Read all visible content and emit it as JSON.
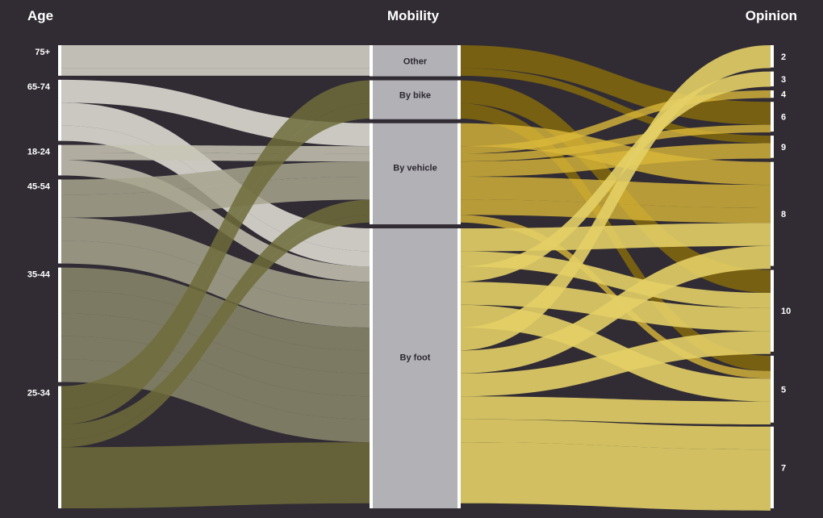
{
  "chart_data": {
    "type": "parallel-sets",
    "dimensions": [
      {
        "key": "age",
        "title": "Age",
        "categories": [
          "75+",
          "65-74",
          "18-24",
          "45-54",
          "35-44",
          "25-34"
        ]
      },
      {
        "key": "mobility",
        "title": "Mobility",
        "categories": [
          "Other",
          "By bike",
          "By vehicle",
          "By foot"
        ]
      },
      {
        "key": "opinion",
        "title": "Opinion",
        "categories": [
          "2",
          "3",
          "4",
          "6",
          "9",
          "8",
          "10",
          "5",
          "7"
        ]
      }
    ],
    "flows": [
      {
        "age": "75+",
        "mobility": "Other",
        "opinion": "6",
        "value": 3
      },
      {
        "age": "75+",
        "mobility": "Other",
        "opinion": "9",
        "value": 1
      },
      {
        "age": "65-74",
        "mobility": "By vehicle",
        "opinion": "8",
        "value": 3
      },
      {
        "age": "65-74",
        "mobility": "By foot",
        "opinion": "8",
        "value": 3
      },
      {
        "age": "65-74",
        "mobility": "By foot",
        "opinion": "10",
        "value": 2
      },
      {
        "age": "18-24",
        "mobility": "By vehicle",
        "opinion": "4",
        "value": 1
      },
      {
        "age": "18-24",
        "mobility": "By vehicle",
        "opinion": "6",
        "value": 1
      },
      {
        "age": "18-24",
        "mobility": "By foot",
        "opinion": "3",
        "value": 2
      },
      {
        "age": "45-54",
        "mobility": "By vehicle",
        "opinion": "9",
        "value": 2
      },
      {
        "age": "45-54",
        "mobility": "By vehicle",
        "opinion": "8",
        "value": 3
      },
      {
        "age": "45-54",
        "mobility": "By foot",
        "opinion": "10",
        "value": 3
      },
      {
        "age": "45-54",
        "mobility": "By foot",
        "opinion": "5",
        "value": 3
      },
      {
        "age": "35-44",
        "mobility": "By foot",
        "opinion": "2",
        "value": 3
      },
      {
        "age": "35-44",
        "mobility": "By foot",
        "opinion": "8",
        "value": 3
      },
      {
        "age": "35-44",
        "mobility": "By foot",
        "opinion": "10",
        "value": 3
      },
      {
        "age": "35-44",
        "mobility": "By foot",
        "opinion": "5",
        "value": 3
      },
      {
        "age": "35-44",
        "mobility": "By foot",
        "opinion": "7",
        "value": 3
      },
      {
        "age": "25-34",
        "mobility": "By bike",
        "opinion": "10",
        "value": 3
      },
      {
        "age": "25-34",
        "mobility": "By bike",
        "opinion": "5",
        "value": 2
      },
      {
        "age": "25-34",
        "mobility": "By vehicle",
        "opinion": "8",
        "value": 2
      },
      {
        "age": "25-34",
        "mobility": "By vehicle",
        "opinion": "5",
        "value": 1
      },
      {
        "age": "25-34",
        "mobility": "By foot",
        "opinion": "7",
        "value": 8
      }
    ],
    "colors": {
      "age": {
        "75+": "#dad8cc",
        "65-74": "#e6e4dc",
        "18-24": "#c8c6b5",
        "45-54": "#a7a58e",
        "35-44": "#8b886c",
        "25-34": "#6f6c3b"
      },
      "mobility_bar": "#b2b1b5",
      "opinion_flow": "#e3cf66",
      "opinion_highlight": "#f8e640",
      "opinion_dark": "#8a6e0a",
      "background": "#312c34",
      "node_bar": "#ffffff"
    }
  }
}
